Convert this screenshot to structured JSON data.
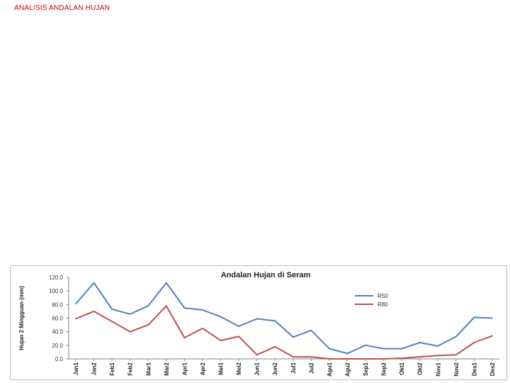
{
  "page": {
    "title": "ANALISIS  ANDALAN HUJAN"
  },
  "colors": {
    "title": "#c00000",
    "r50": "#4f81bd",
    "r80": "#c0504d"
  },
  "chart_data": {
    "type": "line",
    "title": "Andalan Hujan di Seram",
    "ylabel": "Hujan 2 Mingguan (mm)",
    "xlabel": "",
    "ylim": [
      0,
      120
    ],
    "yticks": [
      "0.0",
      "20.0",
      "40.0",
      "60.0",
      "80.0",
      "100.0",
      "120.0"
    ],
    "ytick_values": [
      0,
      20,
      40,
      60,
      80,
      100,
      120
    ],
    "grid": false,
    "legend": "top-right",
    "categories": [
      "Jan1",
      "Jan2",
      "Feb1",
      "Feb2",
      "Mar1",
      "Mar2",
      "Apr1",
      "Apr2",
      "Mei1",
      "Mei2",
      "Jun1",
      "Jun2",
      "Jul1",
      "Jul2",
      "Agu1",
      "Agu2",
      "Sep1",
      "Sep2",
      "Okt1",
      "Okt2",
      "Nov1",
      "Nov2",
      "Des1",
      "Des2"
    ],
    "series": [
      {
        "name": "R50",
        "color": "#4f81bd",
        "values": [
          81,
          112,
          73,
          66,
          78,
          112,
          75,
          72,
          62,
          48,
          59,
          56,
          32,
          42,
          15,
          8,
          20,
          15,
          15,
          24,
          19,
          33,
          61,
          60
        ]
      },
      {
        "name": "R80",
        "color": "#c0504d",
        "values": [
          59,
          70,
          55,
          40,
          50,
          78,
          31,
          45,
          27,
          33,
          6,
          18,
          3,
          3,
          0,
          0,
          0,
          0,
          1,
          3,
          5,
          6,
          24,
          34
        ]
      }
    ]
  }
}
